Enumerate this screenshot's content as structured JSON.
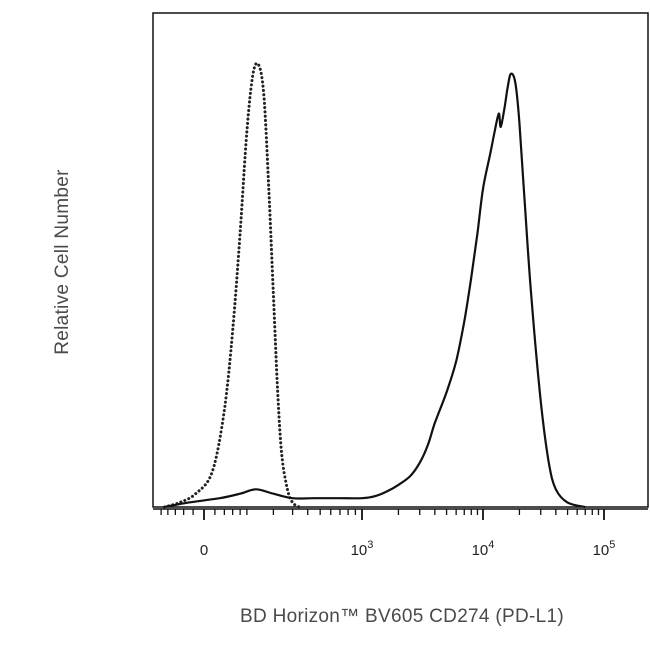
{
  "chart_data": {
    "type": "line",
    "xlabel": "BD Horizon™ BV605 CD274 (PD-L1)",
    "ylabel": "Relative Cell Number",
    "x_scale": "biexponential",
    "x_ticks": [
      {
        "value": 0,
        "base": "0",
        "exp": ""
      },
      {
        "value": 1000,
        "base": "10",
        "exp": "3"
      },
      {
        "value": 10000,
        "base": "10",
        "exp": "4"
      },
      {
        "value": 100000,
        "base": "10",
        "exp": "5"
      }
    ],
    "ylim": [
      0,
      100
    ],
    "grid": false,
    "legend": "none",
    "series": [
      {
        "style": "dotted",
        "color": "#222222",
        "x": [
          -90,
          -50,
          -15,
          15,
          40,
          60,
          80,
          100,
          120,
          140,
          160,
          180,
          200,
          220,
          240,
          270,
          300,
          340
        ],
        "y": [
          0,
          1,
          3,
          8,
          22,
          40,
          62,
          85,
          98,
          100,
          93,
          72,
          48,
          26,
          12,
          4,
          1,
          0
        ]
      },
      {
        "style": "solid",
        "color": "#111111",
        "x": [
          -90,
          -30,
          30,
          80,
          130,
          200,
          300,
          450,
          700,
          1000,
          1300,
          1600,
          2000,
          2500,
          3000,
          3500,
          4000,
          5000,
          6000,
          7000,
          8000,
          9000,
          10000,
          11500,
          12500,
          13500,
          14000,
          15000,
          16000,
          17000,
          18500,
          20000,
          22000,
          25000,
          30000,
          35000,
          40000,
          50000,
          70000
        ],
        "y": [
          0,
          1,
          2,
          3,
          4,
          3,
          2,
          2,
          2,
          2,
          2.5,
          3.5,
          5,
          7,
          10,
          14,
          19,
          26,
          33,
          42,
          52,
          62,
          72,
          80,
          85,
          89,
          86,
          90,
          95,
          98,
          96,
          87,
          70,
          48,
          24,
          10,
          4,
          1,
          0
        ]
      }
    ]
  }
}
